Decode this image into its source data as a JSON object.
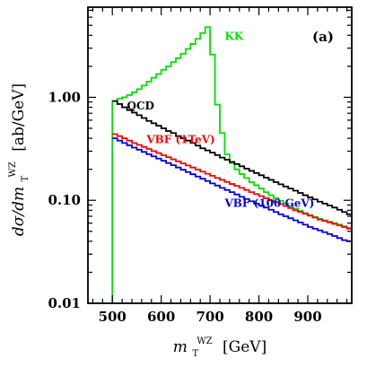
{
  "chart_data": {
    "type": "line",
    "step": true,
    "panel_label": "(a)",
    "xlabel": {
      "main": "m",
      "sub": "T",
      "sup": "WZ",
      "unit": "[GeV]"
    },
    "ylabel": {
      "prefix": "dσ/dm",
      "sub": "T",
      "sup": "WZ",
      "unit": "[ab/GeV]"
    },
    "xlim": [
      450,
      990
    ],
    "ylim": [
      0.01,
      7.5
    ],
    "yscale": "log",
    "x_ticks": [
      500,
      600,
      700,
      800,
      900
    ],
    "x_tick_labels": [
      "500",
      "600",
      "700",
      "800",
      "900"
    ],
    "y_ticks": [
      0.01,
      0.1,
      1.0
    ],
    "y_tick_labels": [
      "0.01",
      "0.10",
      "1.00"
    ],
    "series": [
      {
        "name": "KK",
        "color": "#00e000",
        "x": [
          500,
          510,
          520,
          530,
          540,
          550,
          560,
          570,
          580,
          590,
          600,
          610,
          620,
          630,
          640,
          650,
          660,
          670,
          680,
          690,
          700,
          710,
          720,
          730,
          740,
          750,
          760,
          770,
          780,
          790,
          800,
          810,
          820,
          830,
          840,
          850,
          860,
          870,
          880,
          890,
          900,
          910,
          920,
          930,
          940,
          950,
          960,
          970,
          980
        ],
        "y": [
          0.92,
          0.97,
          1.0,
          1.05,
          1.12,
          1.2,
          1.3,
          1.42,
          1.55,
          1.68,
          1.85,
          2.0,
          2.2,
          2.4,
          2.65,
          2.95,
          3.3,
          3.7,
          4.2,
          4.8,
          2.6,
          0.85,
          0.45,
          0.28,
          0.23,
          0.2,
          0.18,
          0.165,
          0.15,
          0.14,
          0.13,
          0.12,
          0.112,
          0.105,
          0.099,
          0.093,
          0.088,
          0.083,
          0.079,
          0.075,
          0.072,
          0.069,
          0.066,
          0.064,
          0.062,
          0.06,
          0.058,
          0.056,
          0.054
        ]
      },
      {
        "name": "QCD",
        "color": "#000000",
        "x": [
          500,
          510,
          520,
          530,
          540,
          550,
          560,
          570,
          580,
          590,
          600,
          610,
          620,
          630,
          640,
          650,
          660,
          670,
          680,
          690,
          700,
          710,
          720,
          730,
          740,
          750,
          760,
          770,
          780,
          790,
          800,
          810,
          820,
          830,
          840,
          850,
          860,
          870,
          880,
          890,
          900,
          910,
          920,
          930,
          940,
          950,
          960,
          970,
          980
        ],
        "y": [
          0.92,
          0.86,
          0.8,
          0.75,
          0.71,
          0.67,
          0.63,
          0.59,
          0.56,
          0.53,
          0.5,
          0.47,
          0.45,
          0.42,
          0.4,
          0.38,
          0.36,
          0.34,
          0.32,
          0.305,
          0.29,
          0.275,
          0.26,
          0.248,
          0.236,
          0.225,
          0.214,
          0.203,
          0.193,
          0.184,
          0.175,
          0.166,
          0.158,
          0.15,
          0.143,
          0.136,
          0.13,
          0.124,
          0.118,
          0.112,
          0.107,
          0.102,
          0.097,
          0.093,
          0.089,
          0.085,
          0.081,
          0.077,
          0.073
        ]
      },
      {
        "name": "VBF (1TeV)",
        "color": "#ff0000",
        "x": [
          500,
          510,
          520,
          530,
          540,
          550,
          560,
          570,
          580,
          590,
          600,
          610,
          620,
          630,
          640,
          650,
          660,
          670,
          680,
          690,
          700,
          710,
          720,
          730,
          740,
          750,
          760,
          770,
          780,
          790,
          800,
          810,
          820,
          830,
          840,
          850,
          860,
          870,
          880,
          890,
          900,
          910,
          920,
          930,
          940,
          950,
          960,
          970,
          980
        ],
        "y": [
          0.44,
          0.42,
          0.4,
          0.38,
          0.36,
          0.345,
          0.33,
          0.315,
          0.3,
          0.287,
          0.274,
          0.262,
          0.25,
          0.239,
          0.228,
          0.218,
          0.208,
          0.199,
          0.19,
          0.181,
          0.173,
          0.165,
          0.158,
          0.151,
          0.144,
          0.138,
          0.132,
          0.126,
          0.12,
          0.115,
          0.11,
          0.105,
          0.1,
          0.096,
          0.092,
          0.088,
          0.084,
          0.08,
          0.077,
          0.074,
          0.071,
          0.068,
          0.065,
          0.063,
          0.061,
          0.059,
          0.057,
          0.055,
          0.053
        ]
      },
      {
        "name": "VBF (100 GeV)",
        "color": "#0000e0",
        "x": [
          500,
          510,
          520,
          530,
          540,
          550,
          560,
          570,
          580,
          590,
          600,
          610,
          620,
          630,
          640,
          650,
          660,
          670,
          680,
          690,
          700,
          710,
          720,
          730,
          740,
          750,
          760,
          770,
          780,
          790,
          800,
          810,
          820,
          830,
          840,
          850,
          860,
          870,
          880,
          890,
          900,
          910,
          920,
          930,
          940,
          950,
          960,
          970,
          980
        ],
        "y": [
          0.4,
          0.38,
          0.36,
          0.342,
          0.325,
          0.31,
          0.295,
          0.28,
          0.267,
          0.254,
          0.242,
          0.23,
          0.219,
          0.208,
          0.198,
          0.188,
          0.179,
          0.17,
          0.162,
          0.154,
          0.146,
          0.139,
          0.132,
          0.126,
          0.12,
          0.114,
          0.108,
          0.103,
          0.098,
          0.093,
          0.089,
          0.085,
          0.081,
          0.077,
          0.073,
          0.07,
          0.067,
          0.064,
          0.061,
          0.058,
          0.055,
          0.053,
          0.051,
          0.049,
          0.047,
          0.045,
          0.043,
          0.041,
          0.04
        ]
      }
    ],
    "series_labels": [
      {
        "series": "KK",
        "text": "KK",
        "x": 730,
        "y": 3.6,
        "color": "#00e000"
      },
      {
        "series": "QCD",
        "text": "QCD",
        "x": 530,
        "y": 0.76,
        "color": "#000000"
      },
      {
        "series": "VBF (1TeV)",
        "text": "VBF (1TeV)",
        "x": 570,
        "y": 0.36,
        "color": "#ff0000"
      },
      {
        "series": "VBF (100 GeV)",
        "text": "VBF (100 GeV)",
        "x": 730,
        "y": 0.086,
        "color": "#0000e0"
      }
    ]
  }
}
